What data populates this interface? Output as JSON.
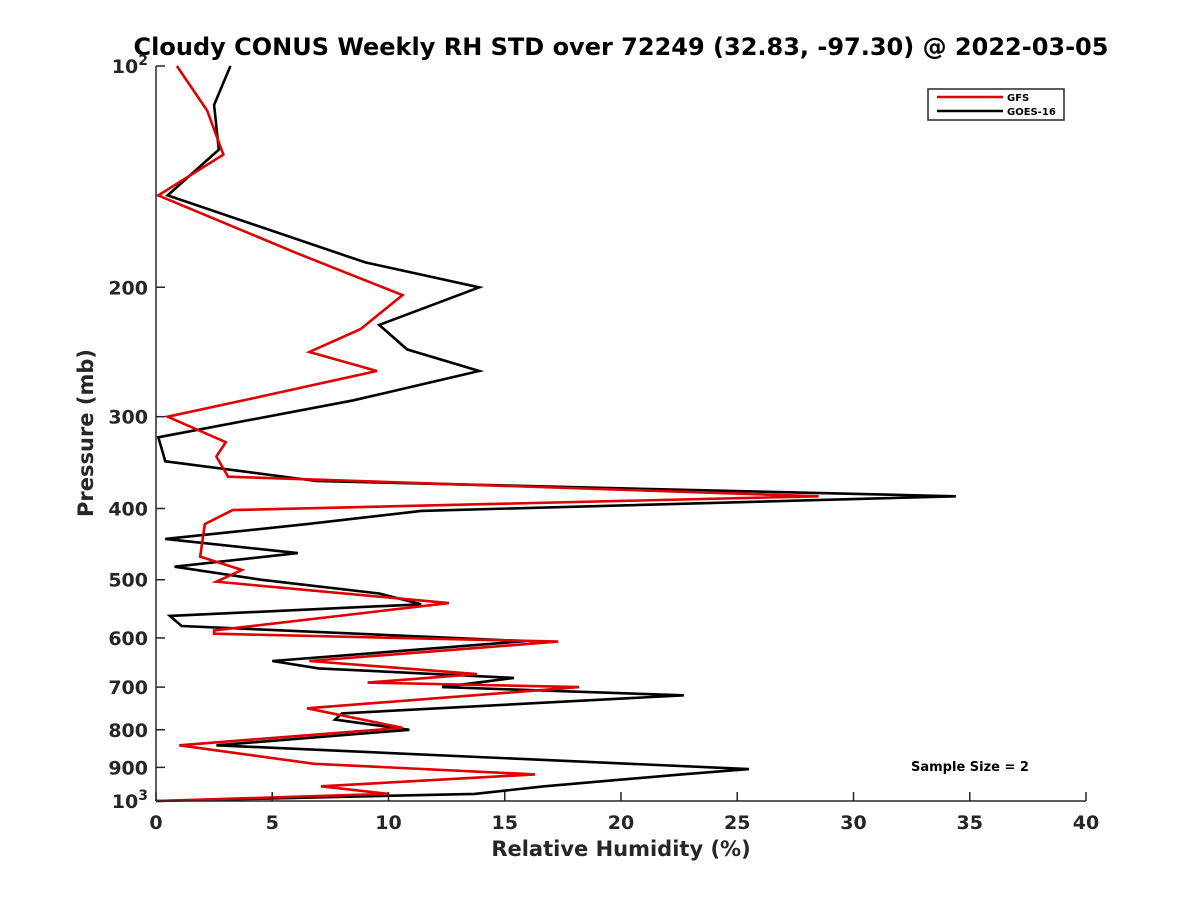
{
  "chart_data": {
    "type": "line",
    "title": "Cloudy CONUS Weekly RH STD over 72249 (32.83, -97.30) @ 2022-03-05",
    "xlabel": "Relative Humidity (%)",
    "ylabel": "Pressure (mb)",
    "xlim": [
      0,
      40
    ],
    "ylim": [
      1000,
      100
    ],
    "y_scale": "log",
    "y_reversed": true,
    "x_ticks": [
      "0",
      "5",
      "10",
      "15",
      "20",
      "25",
      "30",
      "35",
      "40"
    ],
    "y_ticks": [
      {
        "value": 100,
        "base": "10",
        "exp": "2"
      },
      {
        "value": 200,
        "label": "200"
      },
      {
        "value": 300,
        "label": "300"
      },
      {
        "value": 400,
        "label": "400"
      },
      {
        "value": 500,
        "label": "500"
      },
      {
        "value": 600,
        "label": "600"
      },
      {
        "value": 700,
        "label": "700"
      },
      {
        "value": 800,
        "label": "800"
      },
      {
        "value": 900,
        "label": "900"
      },
      {
        "value": 1000,
        "base": "10",
        "exp": "3"
      }
    ],
    "legend_position": "top-right",
    "series": [
      {
        "name": "GFS",
        "color": "#e00000",
        "points": [
          [
            0.9,
            100
          ],
          [
            2.2,
            115
          ],
          [
            2.9,
            132
          ],
          [
            0.1,
            150
          ],
          [
            6.1,
            180
          ],
          [
            10.6,
            205
          ],
          [
            8.8,
            228
          ],
          [
            6.6,
            245
          ],
          [
            9.5,
            260
          ],
          [
            4.2,
            283
          ],
          [
            0.5,
            300
          ],
          [
            3.0,
            325
          ],
          [
            2.6,
            340
          ],
          [
            3.1,
            362
          ],
          [
            28.5,
            385
          ],
          [
            3.3,
            402
          ],
          [
            2.1,
            420
          ],
          [
            1.9,
            465
          ],
          [
            3.7,
            485
          ],
          [
            2.6,
            503
          ],
          [
            12.6,
            538
          ],
          [
            2.5,
            586
          ],
          [
            2.5,
            592
          ],
          [
            17.3,
            607
          ],
          [
            6.6,
            645
          ],
          [
            13.8,
            672
          ],
          [
            9.1,
            690
          ],
          [
            18.2,
            700
          ],
          [
            6.5,
            748
          ],
          [
            10.6,
            795
          ],
          [
            1.0,
            840
          ],
          [
            6.8,
            890
          ],
          [
            16.3,
            920
          ],
          [
            7.1,
            955
          ],
          [
            10.0,
            978
          ],
          [
            0.0,
            1000
          ]
        ]
      },
      {
        "name": "GOES-16",
        "color": "#000000",
        "points": [
          [
            3.2,
            100
          ],
          [
            2.5,
            113
          ],
          [
            2.7,
            130
          ],
          [
            0.5,
            150
          ],
          [
            9.0,
            185
          ],
          [
            13.9,
            200
          ],
          [
            9.6,
            225
          ],
          [
            10.8,
            243
          ],
          [
            13.9,
            260
          ],
          [
            8.5,
            285
          ],
          [
            0.1,
            320
          ],
          [
            0.4,
            345
          ],
          [
            6.9,
            367
          ],
          [
            34.4,
            385
          ],
          [
            11.4,
            403
          ],
          [
            6.5,
            420
          ],
          [
            0.4,
            440
          ],
          [
            6.1,
            460
          ],
          [
            0.8,
            480
          ],
          [
            4.5,
            500
          ],
          [
            9.6,
            522
          ],
          [
            11.4,
            540
          ],
          [
            0.6,
            560
          ],
          [
            1.1,
            578
          ],
          [
            15.9,
            606
          ],
          [
            5.0,
            645
          ],
          [
            7.0,
            660
          ],
          [
            15.4,
            680
          ],
          [
            12.3,
            700
          ],
          [
            22.7,
            718
          ],
          [
            8.0,
            760
          ],
          [
            7.7,
            775
          ],
          [
            10.9,
            800
          ],
          [
            2.6,
            840
          ],
          [
            20.4,
            890
          ],
          [
            25.5,
            905
          ],
          [
            22.6,
            920
          ],
          [
            16.7,
            955
          ],
          [
            13.7,
            978
          ],
          [
            0.0,
            1000
          ]
        ]
      }
    ],
    "annotation": "Sample Size = 2"
  }
}
